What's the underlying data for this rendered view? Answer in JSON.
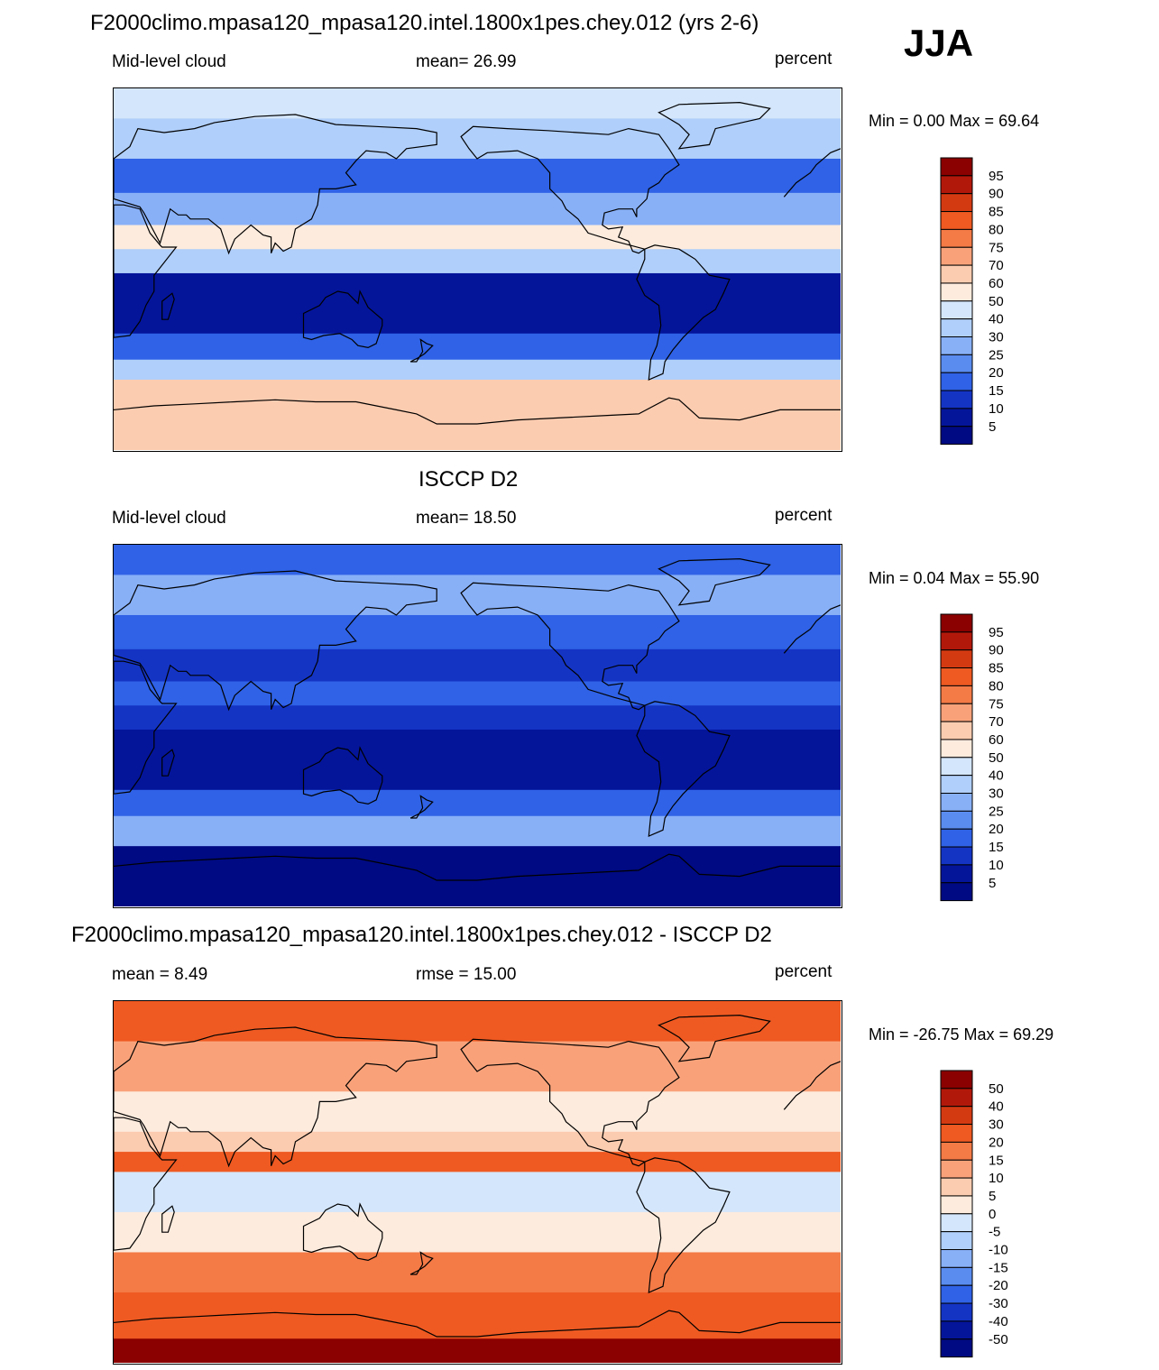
{
  "season": "JJA",
  "chart_data": [
    {
      "type": "heatmap",
      "title": "F2000climo.mpasa120_mpasa120.intel.1800x1pes.chey.012 (yrs 2-6)",
      "variable": "Mid-level cloud",
      "stat_text": "mean=  26.99",
      "units": "percent",
      "minmax": "Min =   0.00 Max =  69.64",
      "mean": 26.99,
      "min": 0.0,
      "max": 69.64,
      "colorbar": {
        "labels": [
          "95",
          "90",
          "85",
          "80",
          "75",
          "70",
          "60",
          "50",
          "40",
          "30",
          "25",
          "20",
          "15",
          "10",
          "5"
        ],
        "colors": [
          "#8b0000",
          "#b2180a",
          "#d43a12",
          "#ef5a22",
          "#f47a46",
          "#f9a27a",
          "#fcccb0",
          "#fdebdd",
          "#d4e6fb",
          "#b0cffa",
          "#88b0f7",
          "#5a8cf0",
          "#2f62e6",
          "#1434c4",
          "#04159a",
          "#000a82"
        ]
      },
      "bands": [
        {
          "lat_range": [
            90,
            75
          ],
          "value": 45
        },
        {
          "lat_range": [
            75,
            55
          ],
          "value": 33
        },
        {
          "lat_range": [
            55,
            38
          ],
          "value": 18
        },
        {
          "lat_range": [
            38,
            22
          ],
          "value": 25
        },
        {
          "lat_range": [
            22,
            10
          ],
          "value": 50
        },
        {
          "lat_range": [
            10,
            -2
          ],
          "value": 30
        },
        {
          "lat_range": [
            -2,
            -32
          ],
          "value": 8
        },
        {
          "lat_range": [
            -32,
            -45
          ],
          "value": 18
        },
        {
          "lat_range": [
            -45,
            -55
          ],
          "value": 38
        },
        {
          "lat_range": [
            -55,
            -90
          ],
          "value": 62
        }
      ]
    },
    {
      "type": "heatmap",
      "title": "ISCCP D2",
      "variable": "Mid-level cloud",
      "stat_text": "mean=  18.50",
      "units": "percent",
      "minmax": "Min =   0.04 Max =  55.90",
      "mean": 18.5,
      "min": 0.04,
      "max": 55.9,
      "colorbar": {
        "labels": [
          "95",
          "90",
          "85",
          "80",
          "75",
          "70",
          "60",
          "50",
          "40",
          "30",
          "25",
          "20",
          "15",
          "10",
          "5"
        ],
        "colors": [
          "#8b0000",
          "#b2180a",
          "#d43a12",
          "#ef5a22",
          "#f47a46",
          "#f9a27a",
          "#fcccb0",
          "#fdebdd",
          "#d4e6fb",
          "#b0cffa",
          "#88b0f7",
          "#5a8cf0",
          "#2f62e6",
          "#1434c4",
          "#04159a",
          "#000a82"
        ]
      },
      "bands": [
        {
          "lat_range": [
            90,
            75
          ],
          "value": 18
        },
        {
          "lat_range": [
            75,
            55
          ],
          "value": 28
        },
        {
          "lat_range": [
            55,
            38
          ],
          "value": 17
        },
        {
          "lat_range": [
            38,
            22
          ],
          "value": 12
        },
        {
          "lat_range": [
            22,
            10
          ],
          "value": 18
        },
        {
          "lat_range": [
            10,
            -2
          ],
          "value": 14
        },
        {
          "lat_range": [
            -2,
            -32
          ],
          "value": 9
        },
        {
          "lat_range": [
            -32,
            -45
          ],
          "value": 16
        },
        {
          "lat_range": [
            -45,
            -60
          ],
          "value": 27
        },
        {
          "lat_range": [
            -60,
            -90
          ],
          "value": 3
        }
      ]
    },
    {
      "type": "heatmap",
      "title": "F2000climo.mpasa120_mpasa120.intel.1800x1pes.chey.012 - ISCCP D2",
      "variable": "mean =   8.49",
      "stat_text": "rmse =  15.00",
      "units": "percent",
      "minmax": "Min = -26.75 Max =  69.29",
      "mean": 8.49,
      "rmse": 15.0,
      "min": -26.75,
      "max": 69.29,
      "colorbar": {
        "labels": [
          "50",
          "40",
          "30",
          "20",
          "15",
          "10",
          "5",
          "0",
          "-5",
          "-10",
          "-15",
          "-20",
          "-30",
          "-40",
          "-50"
        ],
        "colors": [
          "#8b0000",
          "#b2180a",
          "#d43a12",
          "#ef5a22",
          "#f47a46",
          "#f9a27a",
          "#fcccb0",
          "#fdebdd",
          "#d4e6fb",
          "#b0cffa",
          "#88b0f7",
          "#5a8cf0",
          "#2f62e6",
          "#1434c4",
          "#04159a",
          "#000a82"
        ]
      },
      "bands": [
        {
          "lat_range": [
            90,
            70
          ],
          "value": 22
        },
        {
          "lat_range": [
            70,
            45
          ],
          "value": 12
        },
        {
          "lat_range": [
            45,
            25
          ],
          "value": 3
        },
        {
          "lat_range": [
            25,
            15
          ],
          "value": 7
        },
        {
          "lat_range": [
            15,
            5
          ],
          "value": 22
        },
        {
          "lat_range": [
            5,
            -15
          ],
          "value": -3
        },
        {
          "lat_range": [
            -15,
            -35
          ],
          "value": 4
        },
        {
          "lat_range": [
            -35,
            -55
          ],
          "value": 18
        },
        {
          "lat_range": [
            -55,
            -78
          ],
          "value": 28
        },
        {
          "lat_range": [
            -78,
            -90
          ],
          "value": 60
        }
      ]
    }
  ]
}
